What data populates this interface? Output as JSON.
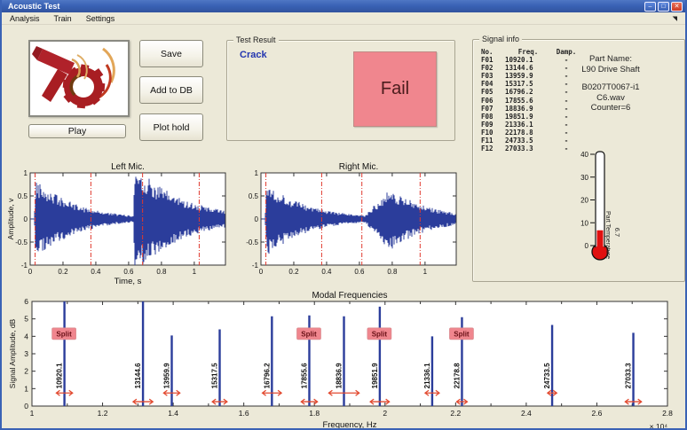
{
  "window": {
    "title": "Acoustic Test",
    "menu": [
      "Analysis",
      "Train",
      "Settings"
    ]
  },
  "controls": {
    "save": "Save",
    "add_to_db": "Add to DB",
    "plot_hold": "Plot hold",
    "play": "Play"
  },
  "test_result": {
    "title": "Test Result",
    "classification": "Crack",
    "verdict": "Fail"
  },
  "signal_info": {
    "title": "Signal info",
    "columns": [
      "No.",
      "Freq.",
      "Damp."
    ],
    "rows": [
      [
        "F01",
        "10920.1",
        "-"
      ],
      [
        "F02",
        "13144.6",
        "-"
      ],
      [
        "F03",
        "13959.9",
        "-"
      ],
      [
        "F04",
        "15317.5",
        "-"
      ],
      [
        "F05",
        "16796.2",
        "-"
      ],
      [
        "F06",
        "17855.6",
        "-"
      ],
      [
        "F07",
        "18836.9",
        "-"
      ],
      [
        "F08",
        "19851.9",
        "-"
      ],
      [
        "F09",
        "21336.1",
        "-"
      ],
      [
        "F10",
        "22178.8",
        "-"
      ],
      [
        "F11",
        "24733.5",
        "-"
      ],
      [
        "F12",
        "27033.3",
        "-"
      ]
    ],
    "part": {
      "label": "Part Name:",
      "name": "L90 Drive Shaft",
      "id": "B0207T0067-i1",
      "file": "C6.wav",
      "counter": "Counter=6"
    },
    "thermometer": {
      "label": "Part Temperature",
      "value": "6.7",
      "reading": 6.7,
      "min": 0,
      "max": 40,
      "ticks": [
        0,
        10,
        20,
        30,
        40
      ]
    }
  },
  "colors": {
    "waveform_blue": "#2b3d9b",
    "marker_red": "#e0392e",
    "arrow_red": "#e2492f",
    "fail_bg": "#f0868e",
    "fail_text": "#4a1c1c",
    "split_bg": "#f0868e",
    "split_text": "#6b1218",
    "thermo_red": "#e01010",
    "crack_blue": "#2336b0"
  },
  "chart_data": [
    {
      "id": "left_mic",
      "type": "line",
      "title": "Left Mic.",
      "xlabel": "Time, s",
      "ylabel": "Amplitude, v",
      "xlim": [
        0,
        1.19
      ],
      "ylim": [
        -1,
        1
      ],
      "xticks": [
        0,
        0.2,
        0.4,
        0.6,
        0.8,
        1
      ],
      "yticks": [
        1,
        0.5,
        0,
        -0.5,
        -1
      ],
      "clip": 1.0,
      "bursts": [
        {
          "start": 0.025,
          "peak": 0.9,
          "attack": 0.01,
          "decay": 4.2
        },
        {
          "start": 0.63,
          "peak": 1.2,
          "attack": 0.006,
          "decay": 3.4
        }
      ],
      "marker_lines": [
        0.03,
        0.37,
        0.685,
        1.03
      ],
      "grid": false
    },
    {
      "id": "right_mic",
      "type": "line",
      "title": "Right Mic.",
      "xlabel": "",
      "ylabel": "",
      "xlim": [
        0,
        1.19
      ],
      "ylim": [
        -1,
        1
      ],
      "xticks": [
        0,
        0.2,
        0.4,
        0.6,
        0.8,
        1
      ],
      "yticks": [
        1,
        0.5,
        0,
        -0.5,
        -1
      ],
      "clip": 1.0,
      "bursts": [
        {
          "start": 0.025,
          "peak": 0.82,
          "attack": 0.01,
          "decay": 4.0
        },
        {
          "start": 0.615,
          "peak": 0.68,
          "attack": 0.17,
          "decay": 4.0
        }
      ],
      "marker_lines": [
        0.03,
        0.37,
        0.615,
        0.97
      ],
      "grid": false
    },
    {
      "id": "modal",
      "type": "stem",
      "title": "Modal Frequencies",
      "xlabel": "Frequency, Hz",
      "x_scale_label": "× 10⁴",
      "ylabel": "Signal Amplitude, dB",
      "xlim": [
        10000,
        28000
      ],
      "ylim": [
        0,
        6
      ],
      "xtick_major": 2000,
      "xtick_minor": 1000,
      "yticks": [
        0,
        1,
        2,
        3,
        4,
        5,
        6
      ],
      "split_label": "Split",
      "stems": [
        {
          "freq": 10920.1,
          "amp": 6.0,
          "split": true,
          "arrow_y": 0.75,
          "arrow_halfwidth": 230
        },
        {
          "freq": 13144.6,
          "amp": 6.0,
          "split": false,
          "arrow_y": 0.25,
          "arrow_halfwidth": 280
        },
        {
          "freq": 13959.9,
          "amp": 4.05,
          "split": false,
          "arrow_y": 0.75,
          "arrow_halfwidth": 230
        },
        {
          "freq": 15317.5,
          "amp": 4.4,
          "split": false,
          "arrow_y": 0.25,
          "arrow_halfwidth": 210
        },
        {
          "freq": 16796.2,
          "amp": 5.15,
          "split": false,
          "arrow_y": 0.75,
          "arrow_halfwidth": 270
        },
        {
          "freq": 17855.6,
          "amp": 5.2,
          "split": true,
          "arrow_y": 0.25,
          "arrow_halfwidth": 230
        },
        {
          "freq": 18836.9,
          "amp": 5.15,
          "split": false,
          "arrow_y": 0.75,
          "arrow_halfwidth": 430
        },
        {
          "freq": 19851.9,
          "amp": 5.7,
          "split": true,
          "arrow_y": 0.25,
          "arrow_halfwidth": 270
        },
        {
          "freq": 21336.1,
          "amp": 4.0,
          "split": false,
          "arrow_y": 0.75,
          "arrow_halfwidth": 200
        },
        {
          "freq": 22178.8,
          "amp": 5.1,
          "split": true,
          "arrow_y": 0.25,
          "arrow_halfwidth": 150
        },
        {
          "freq": 24733.5,
          "amp": 4.65,
          "split": false,
          "arrow_y": 0.75,
          "arrow_halfwidth": 130
        },
        {
          "freq": 27033.3,
          "amp": 4.2,
          "split": false,
          "arrow_y": 0.25,
          "arrow_halfwidth": 230
        }
      ],
      "grid": false
    }
  ]
}
